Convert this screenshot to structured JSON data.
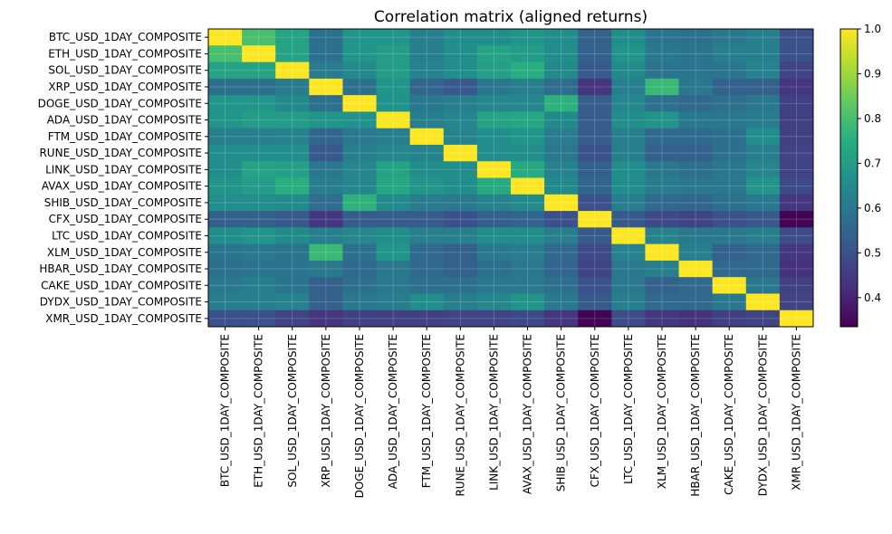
{
  "chart_data": {
    "type": "heatmap",
    "title": "Correlation matrix (aligned returns)",
    "xlabel": "",
    "ylabel": "",
    "labels": [
      "BTC_USD_1DAY_COMPOSITE",
      "ETH_USD_1DAY_COMPOSITE",
      "SOL_USD_1DAY_COMPOSITE",
      "XRP_USD_1DAY_COMPOSITE",
      "DOGE_USD_1DAY_COMPOSITE",
      "ADA_USD_1DAY_COMPOSITE",
      "FTM_USD_1DAY_COMPOSITE",
      "RUNE_USD_1DAY_COMPOSITE",
      "LINK_USD_1DAY_COMPOSITE",
      "AVAX_USD_1DAY_COMPOSITE",
      "SHIB_USD_1DAY_COMPOSITE",
      "CFX_USD_1DAY_COMPOSITE",
      "LTC_USD_1DAY_COMPOSITE",
      "XLM_USD_1DAY_COMPOSITE",
      "HBAR_USD_1DAY_COMPOSITE",
      "CAKE_USD_1DAY_COMPOSITE",
      "DYDX_USD_1DAY_COMPOSITE",
      "XMR_USD_1DAY_COMPOSITE"
    ],
    "matrix": [
      [
        1.0,
        0.8,
        0.72,
        0.58,
        0.68,
        0.68,
        0.62,
        0.66,
        0.66,
        0.68,
        0.66,
        0.54,
        0.66,
        0.59,
        0.58,
        0.6,
        0.62,
        0.5
      ],
      [
        0.8,
        1.0,
        0.72,
        0.58,
        0.68,
        0.7,
        0.62,
        0.66,
        0.72,
        0.7,
        0.66,
        0.54,
        0.68,
        0.6,
        0.59,
        0.62,
        0.62,
        0.5
      ],
      [
        0.72,
        0.72,
        1.0,
        0.61,
        0.65,
        0.7,
        0.63,
        0.66,
        0.71,
        0.75,
        0.65,
        0.52,
        0.65,
        0.59,
        0.59,
        0.59,
        0.63,
        0.47
      ],
      [
        0.58,
        0.58,
        0.61,
        1.0,
        0.58,
        0.68,
        0.55,
        0.52,
        0.6,
        0.62,
        0.57,
        0.44,
        0.62,
        0.78,
        0.6,
        0.54,
        0.54,
        0.44
      ],
      [
        0.68,
        0.68,
        0.65,
        0.58,
        1.0,
        0.67,
        0.6,
        0.62,
        0.64,
        0.64,
        0.76,
        0.53,
        0.64,
        0.58,
        0.56,
        0.58,
        0.6,
        0.46
      ],
      [
        0.68,
        0.7,
        0.7,
        0.68,
        0.67,
        1.0,
        0.62,
        0.64,
        0.72,
        0.73,
        0.65,
        0.53,
        0.66,
        0.68,
        0.6,
        0.6,
        0.61,
        0.46
      ],
      [
        0.62,
        0.62,
        0.63,
        0.55,
        0.6,
        0.62,
        1.0,
        0.63,
        0.66,
        0.68,
        0.61,
        0.53,
        0.62,
        0.56,
        0.56,
        0.58,
        0.66,
        0.46
      ],
      [
        0.66,
        0.66,
        0.66,
        0.52,
        0.62,
        0.64,
        0.63,
        1.0,
        0.66,
        0.66,
        0.6,
        0.5,
        0.62,
        0.54,
        0.54,
        0.58,
        0.62,
        0.47
      ],
      [
        0.66,
        0.72,
        0.71,
        0.6,
        0.64,
        0.72,
        0.66,
        0.66,
        1.0,
        0.74,
        0.63,
        0.54,
        0.66,
        0.6,
        0.58,
        0.6,
        0.64,
        0.47
      ],
      [
        0.68,
        0.7,
        0.75,
        0.62,
        0.64,
        0.73,
        0.68,
        0.66,
        0.74,
        1.0,
        0.65,
        0.55,
        0.66,
        0.61,
        0.6,
        0.6,
        0.68,
        0.48
      ],
      [
        0.66,
        0.66,
        0.65,
        0.57,
        0.76,
        0.65,
        0.61,
        0.6,
        0.63,
        0.65,
        1.0,
        0.5,
        0.62,
        0.56,
        0.55,
        0.58,
        0.6,
        0.44
      ],
      [
        0.54,
        0.54,
        0.52,
        0.44,
        0.53,
        0.53,
        0.53,
        0.5,
        0.54,
        0.55,
        0.5,
        1.0,
        0.52,
        0.48,
        0.47,
        0.5,
        0.52,
        0.34
      ],
      [
        0.66,
        0.68,
        0.65,
        0.62,
        0.64,
        0.66,
        0.62,
        0.62,
        0.66,
        0.66,
        0.62,
        0.52,
        1.0,
        0.63,
        0.6,
        0.6,
        0.62,
        0.49
      ],
      [
        0.59,
        0.6,
        0.59,
        0.78,
        0.58,
        0.68,
        0.56,
        0.54,
        0.6,
        0.61,
        0.56,
        0.48,
        0.63,
        1.0,
        0.62,
        0.54,
        0.56,
        0.44
      ],
      [
        0.58,
        0.59,
        0.59,
        0.6,
        0.56,
        0.6,
        0.56,
        0.54,
        0.58,
        0.6,
        0.55,
        0.47,
        0.6,
        0.62,
        1.0,
        0.56,
        0.56,
        0.43
      ],
      [
        0.6,
        0.62,
        0.59,
        0.54,
        0.58,
        0.6,
        0.58,
        0.58,
        0.6,
        0.6,
        0.58,
        0.5,
        0.6,
        0.54,
        0.56,
        1.0,
        0.6,
        0.46
      ],
      [
        0.62,
        0.62,
        0.63,
        0.54,
        0.6,
        0.61,
        0.66,
        0.62,
        0.64,
        0.68,
        0.6,
        0.52,
        0.62,
        0.56,
        0.56,
        0.6,
        1.0,
        0.47
      ],
      [
        0.5,
        0.5,
        0.47,
        0.44,
        0.46,
        0.46,
        0.46,
        0.47,
        0.47,
        0.48,
        0.44,
        0.34,
        0.49,
        0.44,
        0.43,
        0.46,
        0.47,
        1.0
      ]
    ],
    "colormap": "viridis",
    "color_range": [
      0.335,
      1.0
    ],
    "colorbar_ticks": [
      "0.4",
      "0.5",
      "0.6",
      "0.7",
      "0.8",
      "0.9",
      "1.0"
    ],
    "colorbar_tick_values": [
      0.4,
      0.5,
      0.6,
      0.7,
      0.8,
      0.9,
      1.0
    ],
    "grid": true
  }
}
